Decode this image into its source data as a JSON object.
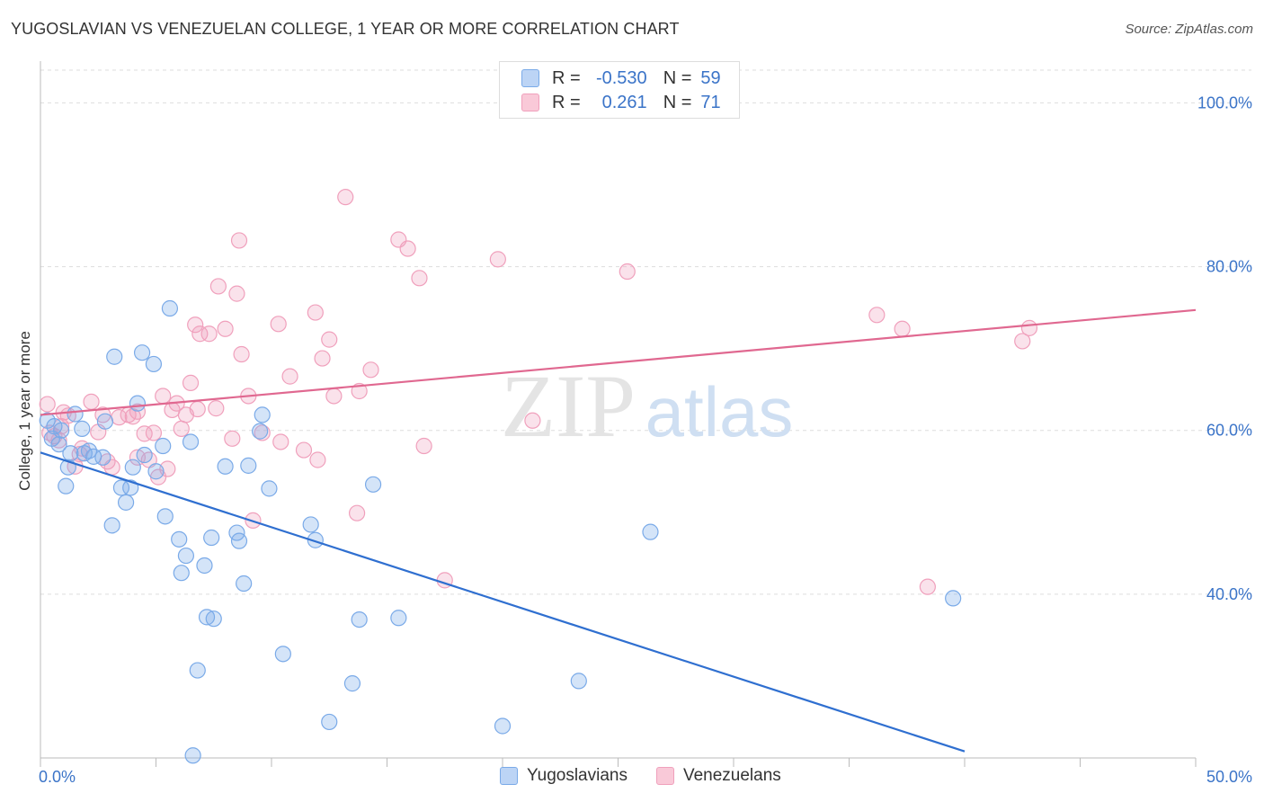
{
  "header": {
    "title": "YUGOSLAVIAN VS VENEZUELAN COLLEGE, 1 YEAR OR MORE CORRELATION CHART",
    "source": "Source: ZipAtlas.com"
  },
  "watermark": {
    "zip": "ZIP",
    "atlas": "atlas"
  },
  "legend_top": {
    "rows": [
      {
        "r_label": "R =",
        "r_value": "-0.530",
        "n_label": "N =",
        "n_value": "59"
      },
      {
        "r_label": "R =",
        "r_value": "0.261",
        "n_label": "N =",
        "n_value": "71"
      }
    ]
  },
  "colors": {
    "yugoslavians": "#7aaae8",
    "yugoslavians_line": "#2f6fd0",
    "venezuelans": "#f0a0bc",
    "venezuelans_line": "#e06890",
    "value_text": "#3b74c8"
  },
  "chart_data": {
    "type": "scatter",
    "title": "YUGOSLAVIAN VS VENEZUELAN COLLEGE, 1 YEAR OR MORE CORRELATION CHART",
    "xlabel": "",
    "ylabel": "College, 1 year or more",
    "xlim": [
      0,
      50
    ],
    "ylim": [
      20,
      104
    ],
    "x_tick_labels": [
      "0.0%",
      "50.0%"
    ],
    "y_ticks": [
      40,
      60,
      80,
      100
    ],
    "y_tick_labels": [
      "40.0%",
      "60.0%",
      "80.0%",
      "100.0%"
    ],
    "grid": true,
    "legend_position": "bottom",
    "series": [
      {
        "name": "Yugoslavians",
        "r": -0.53,
        "n": 59,
        "trend": {
          "x": [
            0,
            40
          ],
          "y": [
            57.3,
            20.8
          ]
        },
        "points": [
          [
            0.3,
            61.2
          ],
          [
            0.5,
            59.0
          ],
          [
            0.6,
            60.5
          ],
          [
            0.8,
            58.3
          ],
          [
            0.9,
            60.0
          ],
          [
            1.1,
            53.2
          ],
          [
            1.2,
            55.5
          ],
          [
            1.5,
            62.0
          ],
          [
            1.8,
            60.2
          ],
          [
            1.9,
            57.2
          ],
          [
            2.1,
            57.5
          ],
          [
            2.3,
            56.8
          ],
          [
            2.7,
            56.7
          ],
          [
            2.8,
            61.1
          ],
          [
            3.1,
            48.4
          ],
          [
            3.2,
            69.0
          ],
          [
            3.5,
            53.0
          ],
          [
            3.7,
            51.2
          ],
          [
            3.9,
            53.0
          ],
          [
            4.0,
            55.5
          ],
          [
            4.2,
            63.3
          ],
          [
            4.4,
            69.5
          ],
          [
            4.5,
            57.0
          ],
          [
            4.9,
            68.1
          ],
          [
            5.0,
            55.0
          ],
          [
            5.3,
            58.1
          ],
          [
            5.4,
            49.5
          ],
          [
            5.6,
            74.9
          ],
          [
            6.0,
            46.7
          ],
          [
            6.1,
            42.6
          ],
          [
            6.3,
            44.7
          ],
          [
            6.5,
            58.6
          ],
          [
            6.6,
            20.3
          ],
          [
            6.8,
            30.7
          ],
          [
            7.1,
            43.5
          ],
          [
            7.2,
            37.2
          ],
          [
            7.4,
            46.9
          ],
          [
            7.5,
            37.0
          ],
          [
            8.0,
            55.6
          ],
          [
            8.5,
            47.5
          ],
          [
            8.6,
            46.5
          ],
          [
            8.8,
            41.3
          ],
          [
            9.0,
            55.7
          ],
          [
            9.5,
            59.9
          ],
          [
            9.6,
            61.9
          ],
          [
            9.9,
            52.9
          ],
          [
            10.5,
            32.7
          ],
          [
            11.7,
            48.5
          ],
          [
            11.9,
            46.6
          ],
          [
            12.5,
            24.4
          ],
          [
            13.5,
            29.1
          ],
          [
            13.8,
            36.9
          ],
          [
            14.4,
            53.4
          ],
          [
            15.5,
            37.1
          ],
          [
            20.0,
            23.9
          ],
          [
            23.3,
            29.4
          ],
          [
            26.4,
            47.6
          ],
          [
            39.5,
            39.5
          ],
          [
            1.3,
            57.2
          ]
        ]
      },
      {
        "name": "Venezuelans",
        "r": 0.261,
        "n": 71,
        "trend": {
          "x": [
            0,
            50
          ],
          "y": [
            61.9,
            74.7
          ]
        },
        "points": [
          [
            0.3,
            63.2
          ],
          [
            0.4,
            59.7
          ],
          [
            0.6,
            59.3
          ],
          [
            0.8,
            58.8
          ],
          [
            0.9,
            60.5
          ],
          [
            1.0,
            62.2
          ],
          [
            1.2,
            61.8
          ],
          [
            1.5,
            55.6
          ],
          [
            1.7,
            57.1
          ],
          [
            1.8,
            57.8
          ],
          [
            2.2,
            63.5
          ],
          [
            2.5,
            59.8
          ],
          [
            2.7,
            61.9
          ],
          [
            2.9,
            56.2
          ],
          [
            3.1,
            55.5
          ],
          [
            3.4,
            61.6
          ],
          [
            3.8,
            61.9
          ],
          [
            4.0,
            61.7
          ],
          [
            4.2,
            62.3
          ],
          [
            4.2,
            56.7
          ],
          [
            4.5,
            59.6
          ],
          [
            4.7,
            56.4
          ],
          [
            4.9,
            59.7
          ],
          [
            5.1,
            54.3
          ],
          [
            5.3,
            64.2
          ],
          [
            5.5,
            55.3
          ],
          [
            5.7,
            62.5
          ],
          [
            5.9,
            63.3
          ],
          [
            6.1,
            60.2
          ],
          [
            6.3,
            61.9
          ],
          [
            6.5,
            65.8
          ],
          [
            6.7,
            72.9
          ],
          [
            6.8,
            62.6
          ],
          [
            6.9,
            71.8
          ],
          [
            7.3,
            71.8
          ],
          [
            7.6,
            62.7
          ],
          [
            7.7,
            77.6
          ],
          [
            8.0,
            72.4
          ],
          [
            8.3,
            59.0
          ],
          [
            8.5,
            76.7
          ],
          [
            8.6,
            83.2
          ],
          [
            8.7,
            69.3
          ],
          [
            9.0,
            64.2
          ],
          [
            9.2,
            49.0
          ],
          [
            9.6,
            59.7
          ],
          [
            10.3,
            73.0
          ],
          [
            10.4,
            58.6
          ],
          [
            10.8,
            66.6
          ],
          [
            11.4,
            57.6
          ],
          [
            11.9,
            74.4
          ],
          [
            12.0,
            56.4
          ],
          [
            12.2,
            68.8
          ],
          [
            12.5,
            71.1
          ],
          [
            12.7,
            64.2
          ],
          [
            13.2,
            88.5
          ],
          [
            13.7,
            49.9
          ],
          [
            13.8,
            64.8
          ],
          [
            14.3,
            67.4
          ],
          [
            15.5,
            83.3
          ],
          [
            15.9,
            82.2
          ],
          [
            16.4,
            78.6
          ],
          [
            16.6,
            58.1
          ],
          [
            17.5,
            41.7
          ],
          [
            19.8,
            80.9
          ],
          [
            21.3,
            61.2
          ],
          [
            25.4,
            79.4
          ],
          [
            36.2,
            74.1
          ],
          [
            37.3,
            72.4
          ],
          [
            38.4,
            40.9
          ],
          [
            42.5,
            70.9
          ],
          [
            42.8,
            72.5
          ]
        ]
      }
    ]
  },
  "legend_bottom": {
    "items": [
      "Yugoslavians",
      "Venezuelans"
    ]
  }
}
